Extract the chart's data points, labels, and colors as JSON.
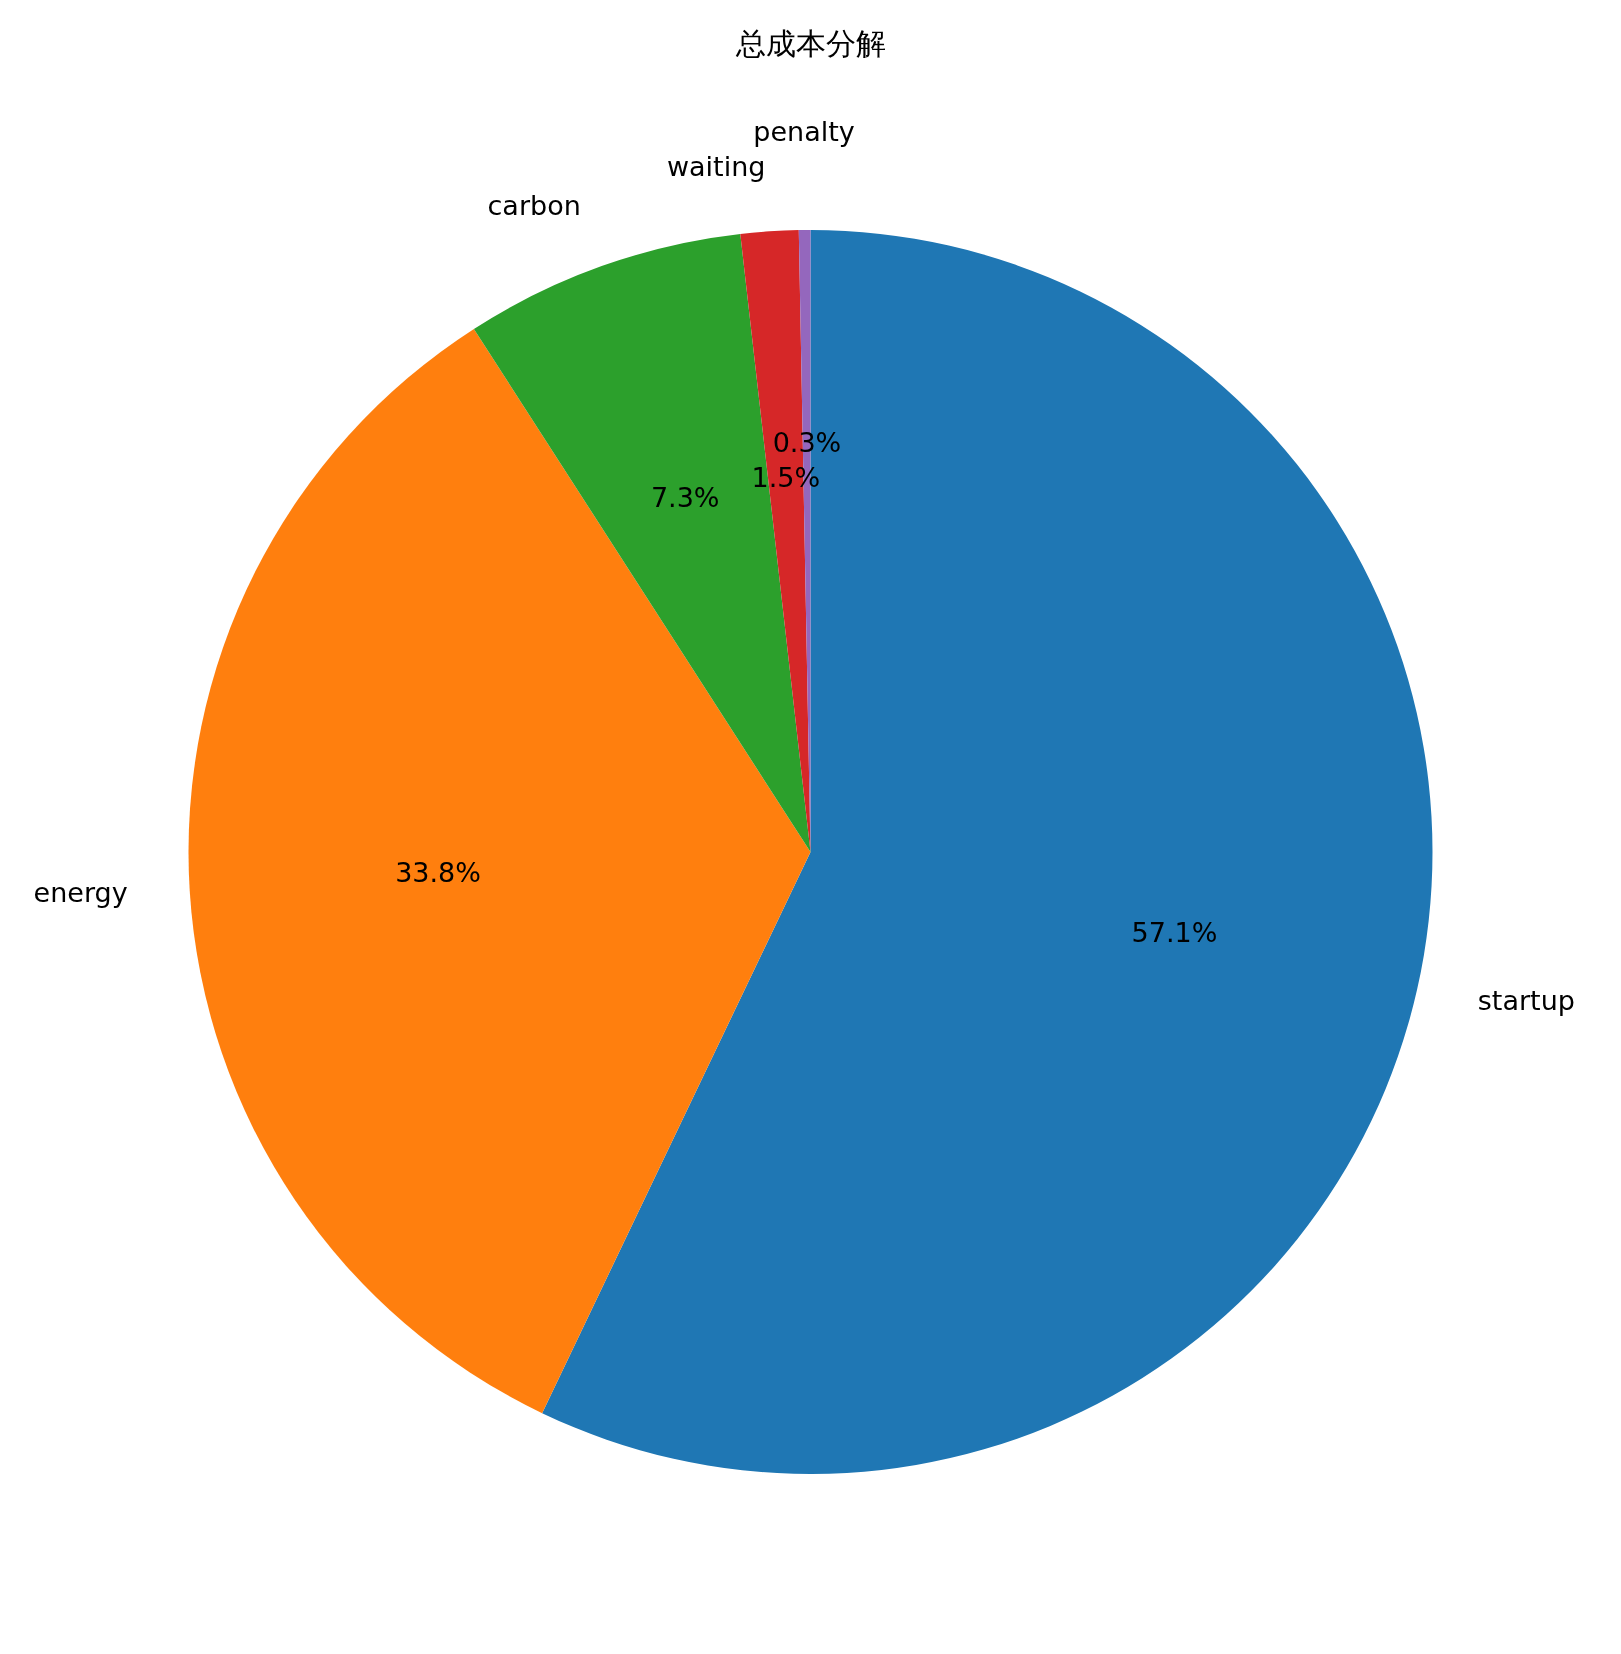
{
  "chart_data": {
    "type": "pie",
    "title": "总成本分解",
    "categories": [
      "startup",
      "energy",
      "carbon",
      "waiting",
      "penalty"
    ],
    "values": [
      57.1,
      33.8,
      7.3,
      1.5,
      0.3
    ],
    "value_labels": [
      "57.1%",
      "33.8%",
      "7.3%",
      "1.5%",
      "0.3%"
    ],
    "colors": [
      "#1f77b4",
      "#ff7f0e",
      "#2ca02c",
      "#d62728",
      "#9467bd"
    ],
    "legend": false
  }
}
